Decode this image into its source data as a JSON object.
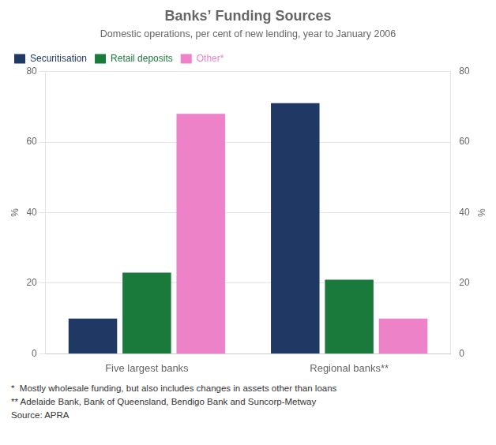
{
  "chart_data": {
    "type": "bar",
    "title": "Banks’ Funding Sources",
    "subtitle": "Domestic operations, per cent of new lending, year to January 2006",
    "categories": [
      "Five largest banks",
      "Regional banks**"
    ],
    "series": [
      {
        "name": "Securitisation",
        "color": "#1f3864",
        "values": [
          10,
          71
        ]
      },
      {
        "name": "Retail deposits",
        "color": "#1a7a3c",
        "values": [
          23,
          21
        ]
      },
      {
        "name": "Other*",
        "color": "#ee82c8",
        "values": [
          68,
          10
        ]
      }
    ],
    "ylim": [
      0,
      80
    ],
    "yticks": [
      0,
      20,
      40,
      60,
      80
    ],
    "y2lim": [
      0,
      80
    ],
    "y2ticks": [
      0,
      20,
      40,
      60,
      80
    ],
    "y_label": "%",
    "y2_label": "%",
    "annotations": [
      "*  Mostly wholesale funding, but also includes changes in assets other than loans",
      "** Adelaide Bank, Bank of Queensland, Bendigo Bank and Suncorp-Metway",
      "Source: APRA"
    ],
    "grid": true,
    "legend": "upper left"
  }
}
